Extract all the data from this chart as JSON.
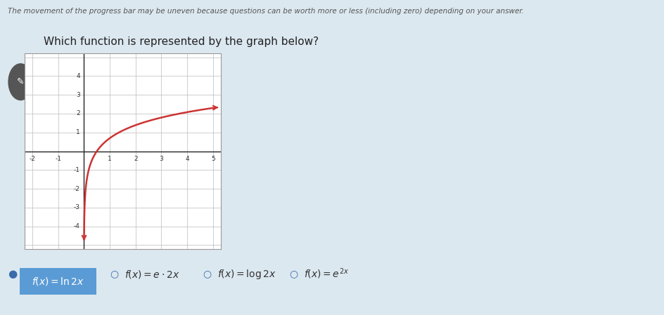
{
  "page_bg": "#dce8f0",
  "graph_bg": "#ffffff",
  "header_text": "The movement of the progress bar may be uneven because questions can be worth more or less (including zero) depending on your answer.",
  "question_text": "Which function is represented by the graph below?",
  "graph_xlim": [
    -2.3,
    5.3
  ],
  "graph_ylim": [
    -5.2,
    5.2
  ],
  "curve_color": "#cc3333",
  "curve_linewidth": 1.8,
  "grid_color": "#bbbbbb",
  "axis_color": "#222222",
  "selected_bg": "#5b9bd5",
  "selected_text_color": "#ffffff",
  "unselected_text_color": "#333333",
  "font_size_header": 7.5,
  "font_size_question": 11,
  "font_size_options": 10,
  "font_size_tick": 6.5,
  "icon_bg": "#555555"
}
